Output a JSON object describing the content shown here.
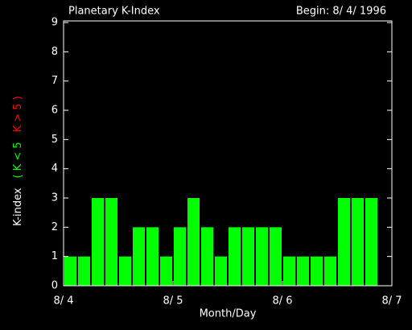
{
  "chart_data": {
    "type": "bar",
    "title": "Planetary K-Index",
    "subtitle": "Begin: 8/ 4/ 1996",
    "x_label": "Month/Day",
    "y_label": "K-index",
    "legend": [
      {
        "label": "( K < 5",
        "color": "#00ff00"
      },
      {
        "label": "K > 5 )",
        "color": "#ff0000"
      }
    ],
    "color": "#00ff00",
    "values": [
      1,
      1,
      3,
      3,
      1,
      2,
      2,
      1,
      2,
      3,
      2,
      1,
      2,
      2,
      2,
      2,
      1,
      1,
      1,
      1,
      3,
      3,
      3,
      null
    ],
    "xlim": [
      0,
      24
    ],
    "xticks": [
      {
        "value": 0,
        "label": "8/ 4"
      },
      {
        "value": 8,
        "label": "8/ 5"
      },
      {
        "value": 16,
        "label": "8/ 6"
      },
      {
        "value": 24,
        "label": "8/ 7"
      }
    ],
    "ylim": [
      0,
      9
    ],
    "yticks": [
      0,
      1,
      2,
      3,
      4,
      5,
      6,
      7,
      8,
      9
    ]
  }
}
